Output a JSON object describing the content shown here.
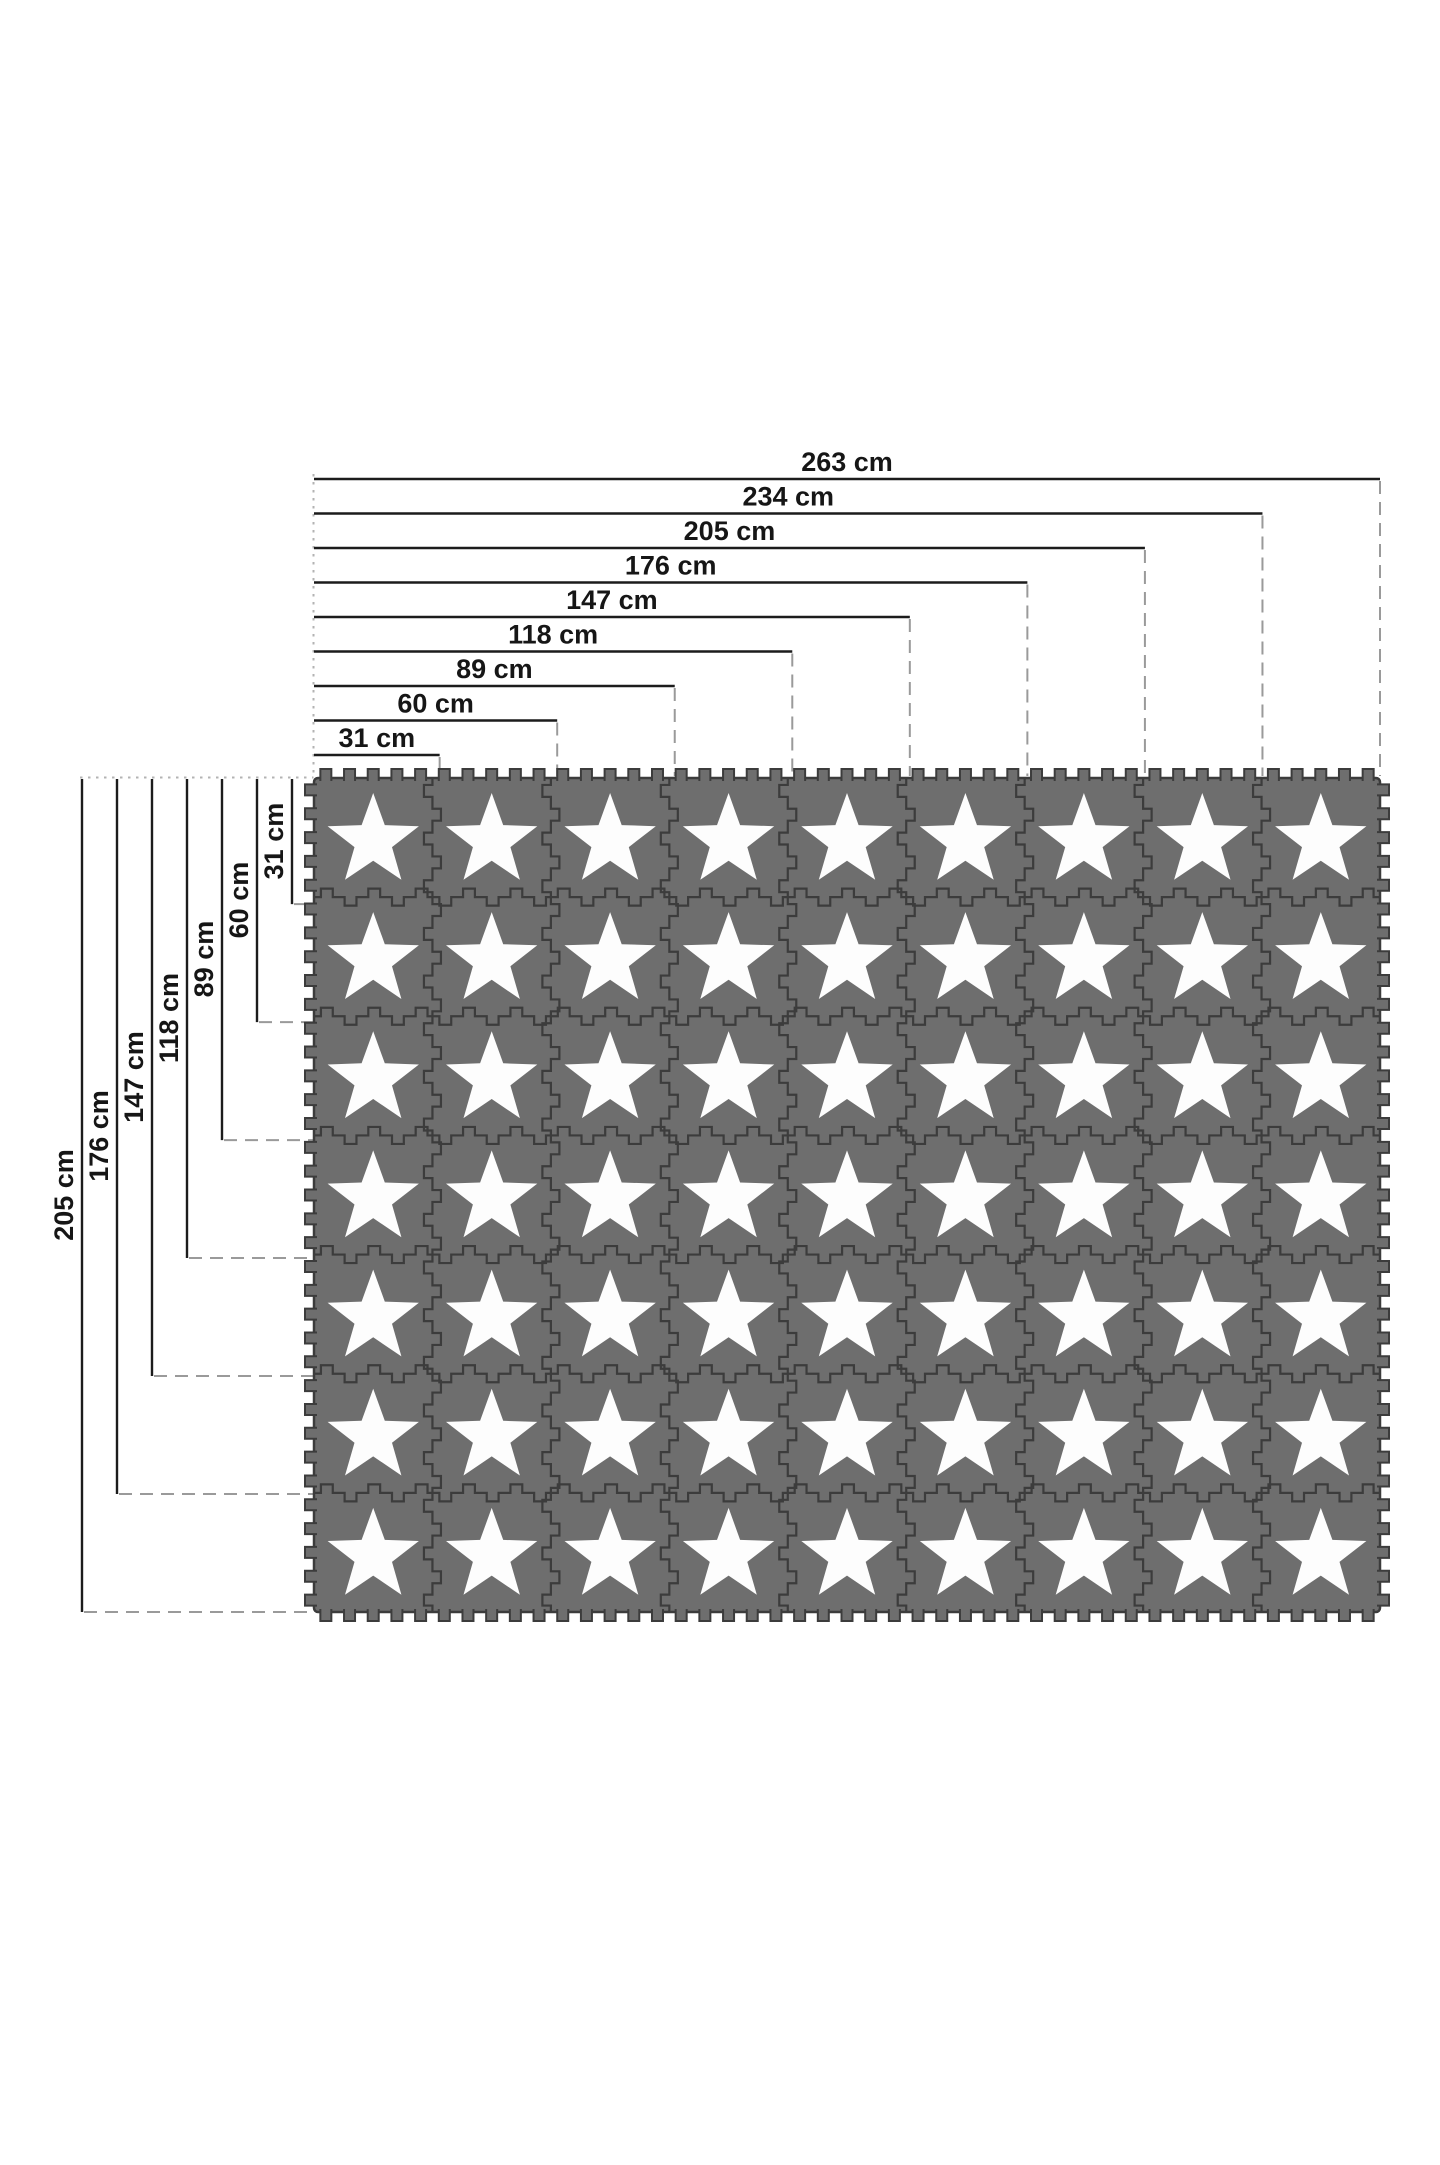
{
  "page": {
    "background": "#ffffff",
    "description_label": ""
  },
  "diagram": {
    "unit": "cm",
    "top_dimensions": [
      {
        "value": 263,
        "label": "263 cm"
      },
      {
        "value": 234,
        "label": "234 cm"
      },
      {
        "value": 205,
        "label": "205 cm"
      },
      {
        "value": 176,
        "label": "176 cm"
      },
      {
        "value": 147,
        "label": "147 cm"
      },
      {
        "value": 118,
        "label": "118 cm"
      },
      {
        "value": 89,
        "label": "89 cm"
      },
      {
        "value": 60,
        "label": "60 cm"
      },
      {
        "value": 31,
        "label": "31 cm"
      }
    ],
    "left_dimensions": [
      {
        "value": 205,
        "label": "205 cm"
      },
      {
        "value": 176,
        "label": "176 cm"
      },
      {
        "value": 147,
        "label": "147 cm"
      },
      {
        "value": 118,
        "label": "118 cm"
      },
      {
        "value": 89,
        "label": "89 cm"
      },
      {
        "value": 60,
        "label": "60 cm"
      },
      {
        "value": 31,
        "label": "31 cm"
      }
    ],
    "mat": {
      "rows": 7,
      "cols": 9,
      "tile_icon": "star"
    },
    "colors": {
      "tile": "#6e6e6e",
      "seam": "#3c3c3c",
      "star": "#fdfdfd",
      "dim_line": "#1c1c1c",
      "leader": "#9a9a9a",
      "dotted": "#b3b3b3",
      "background": "#ffffff"
    }
  }
}
